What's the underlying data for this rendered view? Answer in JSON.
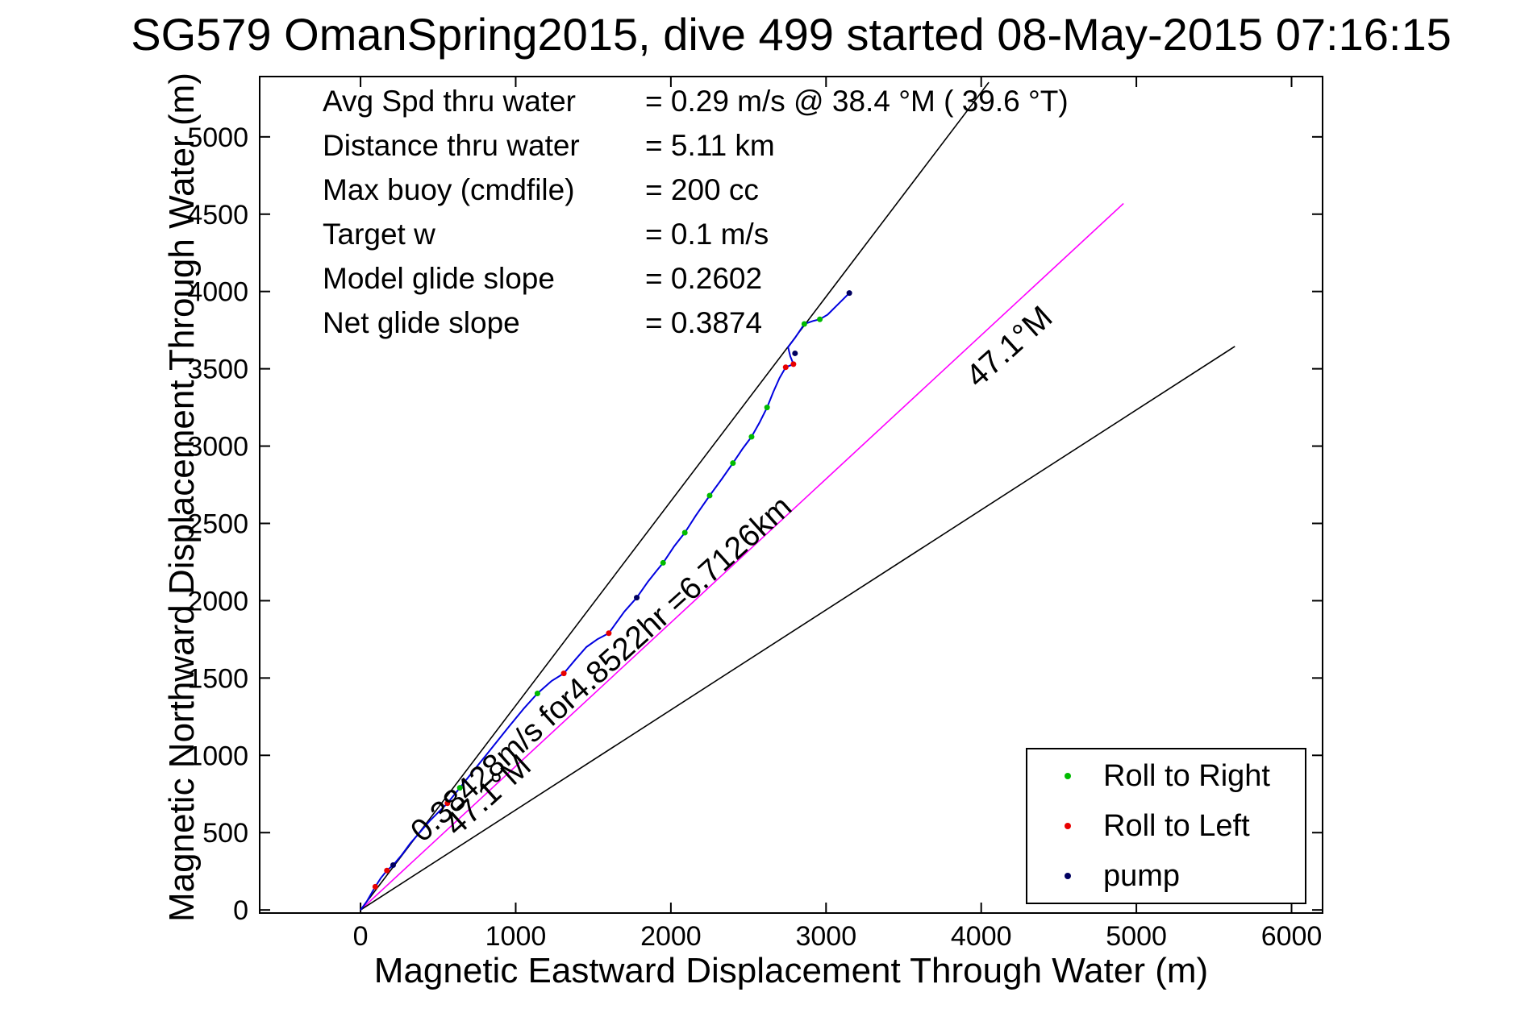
{
  "title": "SG579 OmanSpring2015, dive 499 started 08-May-2015 07:16:15",
  "stats": [
    {
      "label": "Avg Spd thru water",
      "value": "=  0.29 m/s @  38.4 °M ( 39.6 °T)"
    },
    {
      "label": "Distance thru water",
      "value": "=  5.11 km"
    },
    {
      "label": "Max buoy (cmdfile)",
      "value": "= 200 cc"
    },
    {
      "label": "Target w",
      "value": "= 0.1 m/s"
    },
    {
      "label": "Model glide slope",
      "value": "= 0.2602"
    },
    {
      "label": "Net glide slope",
      "value": "= 0.3874"
    }
  ],
  "legend": {
    "items": [
      {
        "name": "roll-right",
        "label": "Roll to Right",
        "color": "#00bb00"
      },
      {
        "name": "roll-left",
        "label": "Roll to Left",
        "color": "#e80000"
      },
      {
        "name": "pump",
        "label": "pump",
        "color": "#000060"
      }
    ]
  },
  "chart_data": {
    "type": "line",
    "title": "SG579 OmanSpring2015, dive 499 started 08-May-2015 07:16:15",
    "xlabel": "Magnetic Eastward Displacement Through Water (m)",
    "ylabel": "Magnetic Northward Displacement Through Water (m)",
    "xlim": [
      -650,
      6200
    ],
    "ylim": [
      -20,
      5390
    ],
    "xticks": [
      0,
      1000,
      2000,
      3000,
      4000,
      5000,
      6000
    ],
    "yticks": [
      0,
      500,
      1000,
      1500,
      2000,
      2500,
      3000,
      3500,
      4000,
      4500,
      5000
    ],
    "grid": false,
    "legend_position": "lower right",
    "trajectory": {
      "name": "dive-track-through-water",
      "color": "#0000e0",
      "points": [
        [
          0,
          0
        ],
        [
          40,
          55
        ],
        [
          95,
          150
        ],
        [
          130,
          205
        ],
        [
          170,
          255
        ],
        [
          210,
          290
        ],
        [
          265,
          355
        ],
        [
          320,
          430
        ],
        [
          385,
          505
        ],
        [
          445,
          575
        ],
        [
          505,
          635
        ],
        [
          560,
          690
        ],
        [
          640,
          790
        ],
        [
          720,
          890
        ],
        [
          800,
          990
        ],
        [
          880,
          1090
        ],
        [
          960,
          1190
        ],
        [
          1050,
          1300
        ],
        [
          1140,
          1400
        ],
        [
          1230,
          1480
        ],
        [
          1310,
          1530
        ],
        [
          1385,
          1620
        ],
        [
          1455,
          1700
        ],
        [
          1525,
          1750
        ],
        [
          1600,
          1790
        ],
        [
          1700,
          1930
        ],
        [
          1780,
          2020
        ],
        [
          1850,
          2120
        ],
        [
          1905,
          2190
        ],
        [
          1950,
          2245
        ],
        [
          2020,
          2350
        ],
        [
          2090,
          2440
        ],
        [
          2160,
          2550
        ],
        [
          2250,
          2680
        ],
        [
          2330,
          2790
        ],
        [
          2400,
          2890
        ],
        [
          2460,
          2980
        ],
        [
          2520,
          3060
        ],
        [
          2570,
          3150
        ],
        [
          2620,
          3250
        ],
        [
          2660,
          3350
        ],
        [
          2700,
          3440
        ],
        [
          2740,
          3510
        ],
        [
          2790,
          3530
        ],
        [
          2770,
          3580
        ],
        [
          2755,
          3640
        ],
        [
          2800,
          3700
        ],
        [
          2860,
          3790
        ],
        [
          2920,
          3810
        ],
        [
          2960,
          3820
        ],
        [
          3010,
          3850
        ],
        [
          3060,
          3900
        ],
        [
          3110,
          3950
        ],
        [
          3150,
          3990
        ]
      ]
    },
    "reference_lines": [
      {
        "name": "bearing-fan-left-37.1M",
        "color": "#000000",
        "from": [
          0,
          0
        ],
        "to": [
          4049,
          5353
        ]
      },
      {
        "name": "desired-track-47.1M",
        "color": "#ff00ff",
        "from": [
          0,
          0
        ],
        "to": [
          4917,
          4569
        ]
      },
      {
        "name": "bearing-fan-right-57.1M",
        "color": "#000000",
        "from": [
          0,
          0
        ],
        "to": [
          5635,
          3645
        ]
      }
    ],
    "markers": {
      "roll_right": {
        "label": "Roll to Right",
        "color": "#00bb00",
        "points": [
          [
            640,
            790
          ],
          [
            1140,
            1400
          ],
          [
            1950,
            2245
          ],
          [
            2090,
            2440
          ],
          [
            2250,
            2680
          ],
          [
            2400,
            2890
          ],
          [
            2520,
            3060
          ],
          [
            2620,
            3250
          ],
          [
            2860,
            3790
          ],
          [
            2960,
            3820
          ]
        ]
      },
      "roll_left": {
        "label": "Roll to Left",
        "color": "#e80000",
        "points": [
          [
            95,
            150
          ],
          [
            170,
            255
          ],
          [
            560,
            690
          ],
          [
            1310,
            1530
          ],
          [
            1600,
            1790
          ],
          [
            2740,
            3510
          ],
          [
            2790,
            3530
          ]
        ]
      },
      "pump": {
        "label": "pump",
        "color": "#000060",
        "points": [
          [
            210,
            290
          ],
          [
            1780,
            2020
          ],
          [
            2800,
            3600
          ],
          [
            3150,
            3990
          ]
        ]
      }
    },
    "annotations": [
      {
        "name": "speed-distance-annotation",
        "text": "0.38428m/s for4.8522hr =6.7126km",
        "at": [
          400,
          430
        ],
        "rotation": -42,
        "font_size": 39
      },
      {
        "name": "heading-label-lower",
        "text": "47.1°M",
        "at": [
          620,
          470
        ],
        "rotation": -42,
        "font_size": 40
      },
      {
        "name": "heading-label-upper",
        "text": "47.1°M",
        "at": [
          3980,
          3370
        ],
        "rotation": -42,
        "font_size": 40
      }
    ]
  }
}
